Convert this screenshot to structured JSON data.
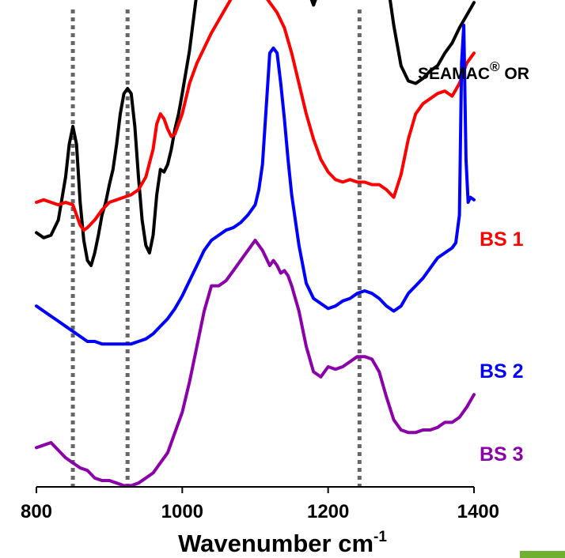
{
  "chart_data": {
    "type": "line",
    "title": "",
    "xlabel": "Wavenumber cm",
    "xlabel_superscript": "-1",
    "ylabel": "",
    "xlim": [
      800,
      1400
    ],
    "x_ticks": [
      "800",
      "1000",
      "1200",
      "1400"
    ],
    "x_tick_values": [
      800,
      1000,
      1200,
      1400
    ],
    "reference_lines_x": [
      850,
      925,
      1243
    ],
    "grid": false,
    "legend": "inline labels at right",
    "series": [
      {
        "name": "SEAMAC",
        "name_superscript": "®",
        "name_suffix": " OR",
        "color": "#000000",
        "x": [
          800,
          810,
          820,
          830,
          840,
          845,
          850,
          855,
          860,
          865,
          870,
          875,
          880,
          885,
          890,
          895,
          900,
          905,
          910,
          915,
          920,
          925,
          930,
          935,
          940,
          945,
          950,
          955,
          960,
          965,
          970,
          975,
          980,
          985,
          990,
          995,
          1000,
          1010,
          1020,
          1030,
          1040,
          1050,
          1060,
          1070,
          1080,
          1090,
          1100,
          1110,
          1120,
          1125,
          1130,
          1140,
          1150,
          1160,
          1170,
          1175,
          1180,
          1185,
          1190,
          1200,
          1210,
          1220,
          1230,
          1240,
          1250,
          1260,
          1270,
          1280,
          1290,
          1300,
          1310,
          1320,
          1330,
          1340,
          1350,
          1360,
          1370,
          1380,
          1390,
          1400
        ],
        "y": [
          0.33,
          0.31,
          0.32,
          0.38,
          0.55,
          0.68,
          0.75,
          0.68,
          0.45,
          0.3,
          0.22,
          0.2,
          0.25,
          0.32,
          0.4,
          0.45,
          0.52,
          0.58,
          0.68,
          0.8,
          0.88,
          0.9,
          0.88,
          0.75,
          0.55,
          0.38,
          0.28,
          0.25,
          0.32,
          0.48,
          0.58,
          0.57,
          0.6,
          0.66,
          0.74,
          0.8,
          0.88,
          1.05,
          1.28,
          1.48,
          1.56,
          1.55,
          1.54,
          1.6,
          1.58,
          1.55,
          1.54,
          1.5,
          1.51,
          1.53,
          1.5,
          1.48,
          1.45,
          1.4,
          1.33,
          1.27,
          1.23,
          1.27,
          1.36,
          1.46,
          1.51,
          1.53,
          1.53,
          1.53,
          1.54,
          1.53,
          1.47,
          1.35,
          1.15,
          0.99,
          0.93,
          0.92,
          0.94,
          0.97,
          0.99,
          1.04,
          1.08,
          1.14,
          1.19,
          1.24
        ]
      },
      {
        "name": "BS 1",
        "color": "#ff0000",
        "x": [
          800,
          810,
          820,
          830,
          840,
          850,
          855,
          860,
          865,
          870,
          880,
          890,
          900,
          910,
          920,
          930,
          940,
          950,
          960,
          965,
          970,
          975,
          980,
          985,
          990,
          1000,
          1010,
          1020,
          1030,
          1040,
          1050,
          1060,
          1070,
          1080,
          1090,
          1100,
          1110,
          1120,
          1130,
          1140,
          1150,
          1160,
          1170,
          1180,
          1190,
          1200,
          1210,
          1220,
          1230,
          1240,
          1250,
          1260,
          1270,
          1280,
          1290,
          1300,
          1310,
          1320,
          1330,
          1340,
          1350,
          1360,
          1370,
          1380,
          1390,
          1400
        ],
        "y": [
          0.45,
          0.46,
          0.45,
          0.44,
          0.45,
          0.44,
          0.4,
          0.36,
          0.34,
          0.35,
          0.38,
          0.42,
          0.45,
          0.46,
          0.47,
          0.48,
          0.5,
          0.55,
          0.66,
          0.76,
          0.8,
          0.78,
          0.74,
          0.71,
          0.72,
          0.8,
          0.92,
          1.0,
          1.06,
          1.12,
          1.17,
          1.22,
          1.27,
          1.32,
          1.33,
          1.32,
          1.28,
          1.24,
          1.2,
          1.14,
          1.04,
          0.92,
          0.8,
          0.7,
          0.62,
          0.57,
          0.54,
          0.53,
          0.54,
          0.53,
          0.53,
          0.52,
          0.52,
          0.5,
          0.47,
          0.56,
          0.7,
          0.8,
          0.84,
          0.86,
          0.88,
          0.89,
          0.87,
          0.92,
          1.0,
          1.04
        ]
      },
      {
        "name": "BS 2",
        "color": "#0000ff",
        "x": [
          800,
          810,
          820,
          830,
          840,
          850,
          860,
          870,
          880,
          890,
          900,
          910,
          920,
          930,
          940,
          950,
          960,
          970,
          980,
          990,
          1000,
          1010,
          1020,
          1030,
          1040,
          1050,
          1060,
          1070,
          1080,
          1090,
          1100,
          1105,
          1110,
          1115,
          1120,
          1125,
          1130,
          1135,
          1140,
          1145,
          1150,
          1160,
          1170,
          1180,
          1190,
          1200,
          1210,
          1220,
          1230,
          1240,
          1250,
          1260,
          1270,
          1280,
          1290,
          1300,
          1310,
          1320,
          1330,
          1340,
          1350,
          1360,
          1370,
          1375,
          1380,
          1383,
          1386,
          1389,
          1392,
          1395,
          1400
        ],
        "y": [
          0.04,
          0.02,
          0.0,
          -0.02,
          -0.04,
          -0.06,
          -0.08,
          -0.1,
          -0.1,
          -0.11,
          -0.11,
          -0.11,
          -0.11,
          -0.11,
          -0.1,
          -0.09,
          -0.07,
          -0.04,
          -0.01,
          0.03,
          0.08,
          0.14,
          0.2,
          0.26,
          0.3,
          0.32,
          0.34,
          0.35,
          0.37,
          0.4,
          0.44,
          0.5,
          0.6,
          0.82,
          1.04,
          1.06,
          1.04,
          0.92,
          0.78,
          0.62,
          0.48,
          0.28,
          0.13,
          0.07,
          0.05,
          0.03,
          0.04,
          0.06,
          0.07,
          0.09,
          0.1,
          0.09,
          0.07,
          0.04,
          0.02,
          0.04,
          0.09,
          0.12,
          0.15,
          0.19,
          0.23,
          0.25,
          0.27,
          0.29,
          0.4,
          1.0,
          1.15,
          0.62,
          0.45,
          0.47,
          0.46
        ]
      },
      {
        "name": "BS 3",
        "color": "#8b00a8",
        "x": [
          800,
          810,
          820,
          830,
          840,
          850,
          860,
          870,
          880,
          890,
          900,
          910,
          920,
          930,
          940,
          950,
          960,
          970,
          980,
          990,
          1000,
          1010,
          1020,
          1030,
          1040,
          1050,
          1060,
          1070,
          1080,
          1090,
          1100,
          1110,
          1120,
          1125,
          1130,
          1135,
          1140,
          1145,
          1150,
          1160,
          1170,
          1180,
          1190,
          1200,
          1210,
          1220,
          1230,
          1240,
          1250,
          1260,
          1270,
          1280,
          1290,
          1300,
          1310,
          1320,
          1330,
          1340,
          1350,
          1360,
          1370,
          1380,
          1390,
          1400
        ],
        "y": [
          -0.52,
          -0.51,
          -0.5,
          -0.53,
          -0.56,
          -0.58,
          -0.6,
          -0.61,
          -0.64,
          -0.65,
          -0.65,
          -0.66,
          -0.67,
          -0.67,
          -0.66,
          -0.64,
          -0.62,
          -0.58,
          -0.54,
          -0.46,
          -0.38,
          -0.26,
          -0.12,
          0.02,
          0.12,
          0.12,
          0.14,
          0.18,
          0.22,
          0.26,
          0.3,
          0.26,
          0.2,
          0.22,
          0.2,
          0.17,
          0.18,
          0.16,
          0.12,
          0.02,
          -0.12,
          -0.22,
          -0.24,
          -0.2,
          -0.21,
          -0.2,
          -0.18,
          -0.16,
          -0.16,
          -0.17,
          -0.22,
          -0.32,
          -0.41,
          -0.45,
          -0.46,
          -0.46,
          -0.45,
          -0.45,
          -0.44,
          -0.42,
          -0.42,
          -0.4,
          -0.36,
          -0.31
        ]
      }
    ]
  }
}
